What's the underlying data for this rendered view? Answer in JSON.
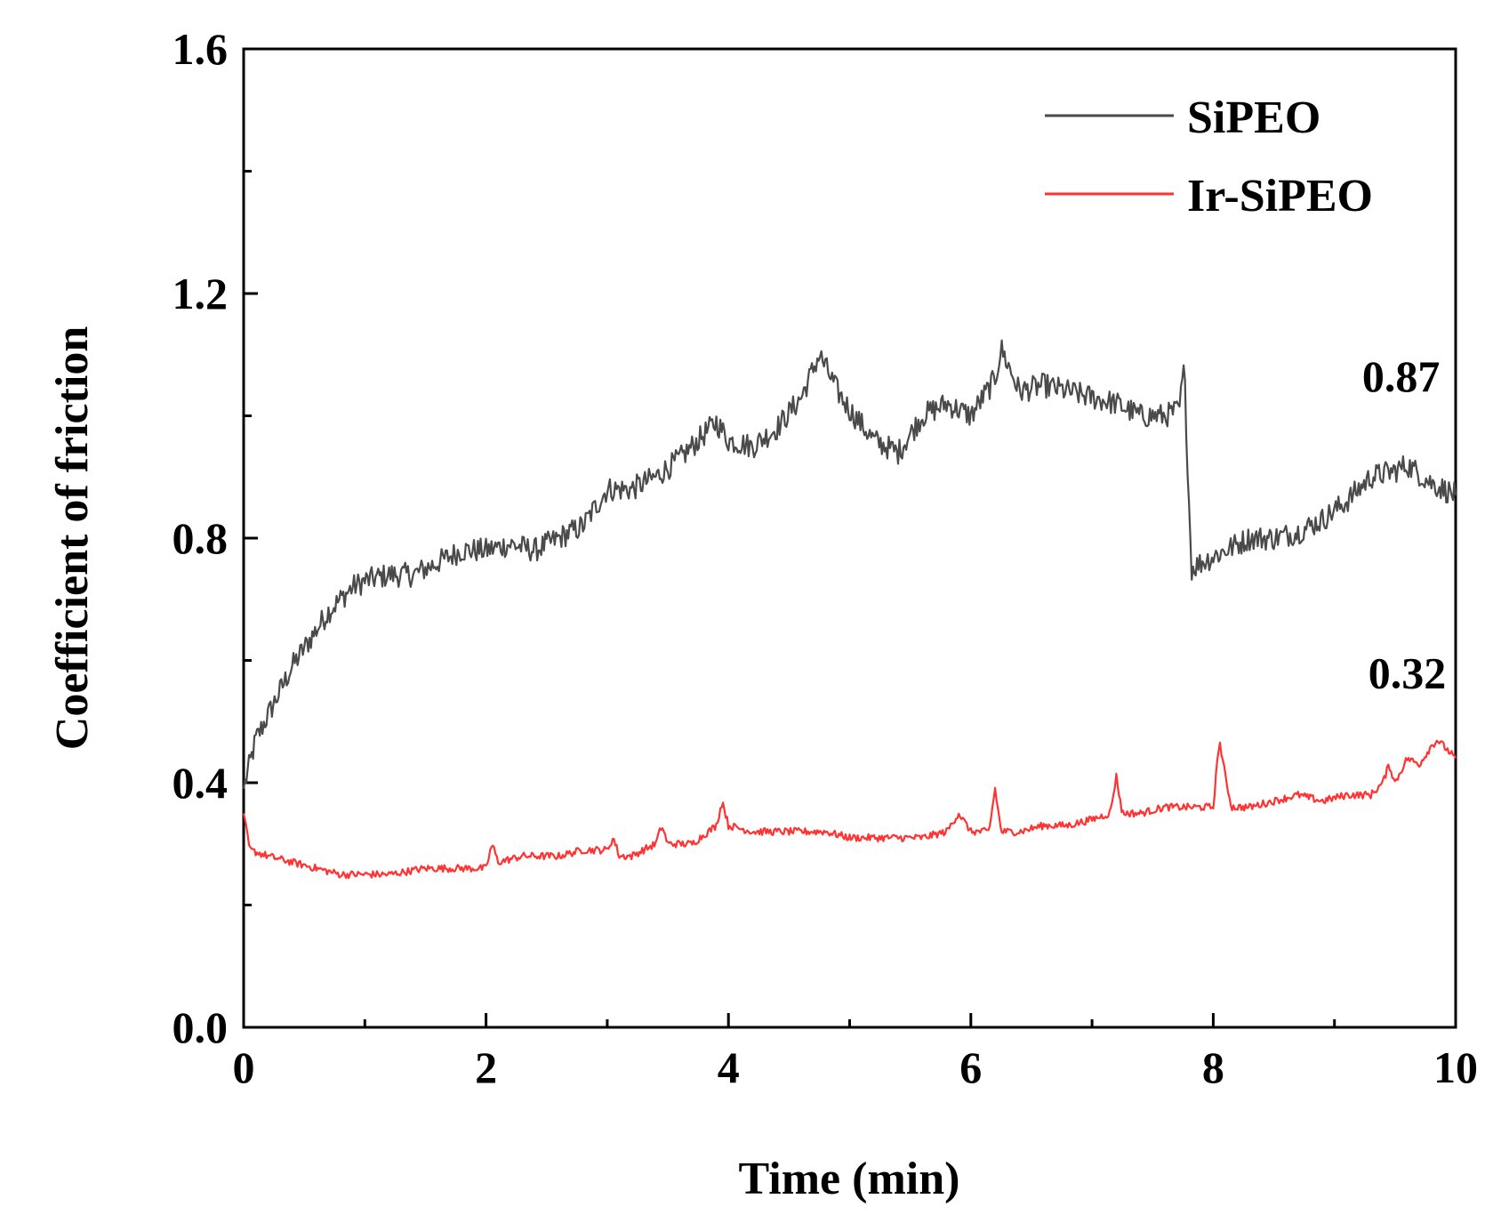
{
  "chart_data": {
    "type": "line",
    "title": "",
    "xlabel": "Time (min)",
    "ylabel": "Coefficient of friction",
    "xlim": [
      0,
      10
    ],
    "ylim": [
      0,
      1.6
    ],
    "xticks": [
      0,
      2,
      4,
      6,
      8,
      10
    ],
    "xtick_labels": [
      "0",
      "2",
      "4",
      "6",
      "8",
      "10"
    ],
    "xminor": [
      1,
      3,
      5,
      7,
      9
    ],
    "yticks": [
      0.0,
      0.4,
      0.8,
      1.2,
      1.6
    ],
    "ytick_labels": [
      "0.0",
      "0.4",
      "0.8",
      "1.2",
      "1.6"
    ],
    "yminor": [
      0.2,
      0.6,
      1.0,
      1.4
    ],
    "grid": false,
    "legend_position": "top-right",
    "series": [
      {
        "name": "SiPEO",
        "color": "#4a4a4a",
        "noise": 0.02,
        "x": [
          0,
          0.1,
          0.2,
          0.3,
          0.4,
          0.5,
          0.6,
          0.7,
          0.8,
          0.9,
          1.0,
          1.2,
          1.4,
          1.6,
          1.8,
          2.0,
          2.2,
          2.4,
          2.6,
          2.8,
          3.0,
          3.2,
          3.4,
          3.6,
          3.8,
          3.9,
          4.0,
          4.2,
          4.4,
          4.6,
          4.75,
          4.9,
          5.0,
          5.2,
          5.4,
          5.6,
          5.8,
          6.0,
          6.2,
          6.25,
          6.4,
          6.6,
          6.8,
          7.0,
          7.2,
          7.4,
          7.6,
          7.72,
          7.76,
          7.82,
          7.9,
          8.1,
          8.3,
          8.5,
          8.7,
          8.9,
          9.1,
          9.3,
          9.5,
          9.6,
          9.8,
          10.0
        ],
        "y": [
          0.39,
          0.47,
          0.51,
          0.55,
          0.59,
          0.62,
          0.65,
          0.68,
          0.7,
          0.72,
          0.73,
          0.74,
          0.74,
          0.76,
          0.78,
          0.78,
          0.79,
          0.78,
          0.8,
          0.82,
          0.88,
          0.88,
          0.9,
          0.93,
          0.97,
          0.99,
          0.96,
          0.95,
          0.98,
          1.03,
          1.1,
          1.04,
          1.01,
          0.96,
          0.94,
          1.0,
          1.02,
          1.0,
          1.06,
          1.11,
          1.04,
          1.05,
          1.04,
          1.03,
          1.02,
          1.0,
          1.0,
          1.01,
          1.08,
          0.75,
          0.76,
          0.78,
          0.8,
          0.8,
          0.81,
          0.83,
          0.86,
          0.9,
          0.91,
          0.92,
          0.89,
          0.87
        ]
      },
      {
        "name": "Ir-SiPEO",
        "color": "#ff3333",
        "noise": 0.006,
        "x": [
          0,
          0.05,
          0.2,
          0.4,
          0.6,
          0.8,
          1.0,
          1.2,
          1.5,
          1.8,
          2.0,
          2.05,
          2.1,
          2.3,
          2.6,
          2.8,
          3.0,
          3.05,
          3.1,
          3.2,
          3.4,
          3.45,
          3.5,
          3.7,
          3.9,
          3.95,
          4.0,
          4.2,
          4.5,
          4.8,
          5.0,
          5.2,
          5.4,
          5.6,
          5.8,
          5.9,
          6.0,
          6.15,
          6.2,
          6.25,
          6.4,
          6.6,
          6.8,
          7.0,
          7.15,
          7.2,
          7.25,
          7.4,
          7.6,
          7.8,
          8.0,
          8.05,
          8.1,
          8.15,
          8.3,
          8.5,
          8.7,
          8.9,
          9.1,
          9.3,
          9.4,
          9.45,
          9.5,
          9.6,
          9.7,
          9.8,
          9.85,
          9.9,
          10.0
        ],
        "y": [
          0.35,
          0.29,
          0.28,
          0.27,
          0.26,
          0.25,
          0.25,
          0.25,
          0.26,
          0.26,
          0.26,
          0.3,
          0.27,
          0.28,
          0.28,
          0.29,
          0.29,
          0.31,
          0.28,
          0.28,
          0.3,
          0.33,
          0.3,
          0.3,
          0.33,
          0.37,
          0.33,
          0.32,
          0.32,
          0.32,
          0.31,
          0.31,
          0.31,
          0.31,
          0.32,
          0.35,
          0.32,
          0.32,
          0.39,
          0.32,
          0.32,
          0.33,
          0.33,
          0.34,
          0.35,
          0.41,
          0.35,
          0.35,
          0.36,
          0.36,
          0.36,
          0.47,
          0.41,
          0.36,
          0.36,
          0.37,
          0.38,
          0.37,
          0.38,
          0.38,
          0.4,
          0.43,
          0.4,
          0.44,
          0.43,
          0.46,
          0.47,
          0.46,
          0.44
        ]
      }
    ],
    "annotations": [
      {
        "text": "0.87",
        "x": 9.55,
        "y": 1.04,
        "anchor": "middle"
      },
      {
        "text": "0.32",
        "x": 9.6,
        "y": 0.555,
        "anchor": "middle"
      }
    ]
  }
}
